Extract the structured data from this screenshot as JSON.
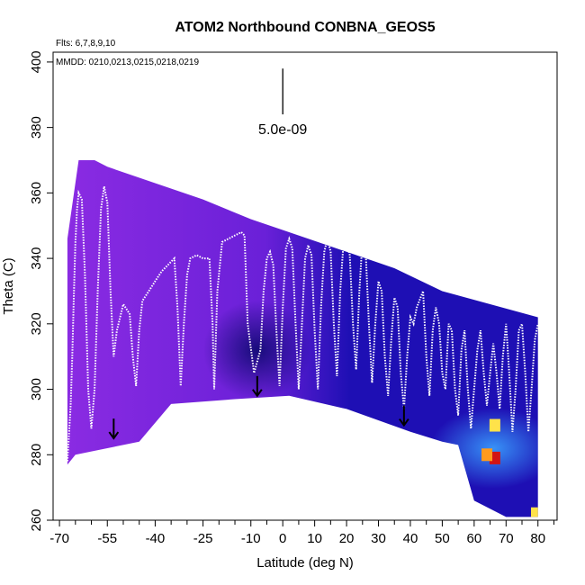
{
  "chart_data": {
    "type": "heatmap",
    "title": "ATOM2 Northbound CONBNA_GEOS5",
    "xlabel": "Latitude (deg N)",
    "ylabel": "Theta (C)",
    "xlim": [
      -72,
      86
    ],
    "ylim": [
      260,
      403
    ],
    "x_ticks": [
      -70,
      -55,
      -40,
      -25,
      -10,
      0,
      10,
      20,
      30,
      40,
      50,
      60,
      70,
      80
    ],
    "x_tick_labels": [
      "-70",
      "-55",
      "-40",
      "-25",
      "-10",
      "0",
      "10",
      "20",
      "30",
      "40",
      "50",
      "60",
      "70",
      "80"
    ],
    "x_minor_ticks": [
      -65,
      -60,
      -50,
      -45,
      -35,
      -30,
      -20,
      -15,
      -5,
      5,
      15,
      25,
      35,
      45,
      55,
      65,
      75,
      85
    ],
    "y_ticks": [
      260,
      280,
      300,
      320,
      340,
      360,
      380,
      400
    ],
    "y_tick_labels": [
      "260",
      "280",
      "300",
      "320",
      "340",
      "360",
      "380",
      "400"
    ],
    "annotations": {
      "flights": "Flts: 6,7,8,9,10",
      "dates": "MMDD: 0210,0213,0215,0218,0219",
      "scale_value": "5.0e-09"
    },
    "scale_bar": {
      "x": 0,
      "y_top": 398,
      "y_bottom": 384
    },
    "colors": {
      "south_purple": "#8a2be2",
      "mid_violet": "#6a20d8",
      "north_blue": "#1e0fb4",
      "dark_core": "#08086a",
      "light_blue": "#3aa0ff",
      "flight_track": "#ffffff",
      "hot_yellow": "#ffe24a",
      "hot_orange": "#ff9a1e",
      "hot_red": "#d21414"
    },
    "domain_top": [
      [
        -67.5,
        346
      ],
      [
        -64,
        370
      ],
      [
        -59,
        370
      ],
      [
        -55,
        368
      ],
      [
        -40,
        363
      ],
      [
        -25,
        358
      ],
      [
        -10,
        352
      ],
      [
        5,
        347
      ],
      [
        20,
        342
      ],
      [
        35,
        337
      ],
      [
        50,
        330
      ],
      [
        65,
        326
      ],
      [
        80,
        322
      ]
    ],
    "domain_bottom": [
      [
        80,
        261
      ],
      [
        70,
        261
      ],
      [
        60,
        266
      ],
      [
        55,
        283
      ],
      [
        50,
        284
      ],
      [
        40,
        287
      ],
      [
        20,
        294
      ],
      [
        2,
        298
      ],
      [
        -15,
        297
      ],
      [
        -35,
        295.5
      ],
      [
        -45,
        284
      ],
      [
        -55,
        282
      ],
      [
        -65,
        280
      ],
      [
        -67.5,
        277
      ]
    ],
    "arrows": [
      [
        -53,
        285
      ],
      [
        -8,
        298
      ],
      [
        38,
        289
      ]
    ],
    "flight_track": [
      [
        -67.5,
        278
      ],
      [
        -66.5,
        295
      ],
      [
        -66,
        310
      ],
      [
        -65.5,
        328
      ],
      [
        -65,
        345
      ],
      [
        -64.5,
        355
      ],
      [
        -64,
        360
      ],
      [
        -63,
        358
      ],
      [
        -62,
        335
      ],
      [
        -61,
        300
      ],
      [
        -60,
        288
      ],
      [
        -59,
        300
      ],
      [
        -58,
        330
      ],
      [
        -57,
        355
      ],
      [
        -56,
        362
      ],
      [
        -55,
        357
      ],
      [
        -54,
        330
      ],
      [
        -53,
        310
      ],
      [
        -52,
        318
      ],
      [
        -50,
        326
      ],
      [
        -48,
        323
      ],
      [
        -47,
        310
      ],
      [
        -46,
        301
      ],
      [
        -45,
        318
      ],
      [
        -44,
        327
      ],
      [
        -42,
        330
      ],
      [
        -40,
        333
      ],
      [
        -38,
        336
      ],
      [
        -36,
        338
      ],
      [
        -34,
        340
      ],
      [
        -33,
        325
      ],
      [
        -32,
        301
      ],
      [
        -31,
        320
      ],
      [
        -30,
        335
      ],
      [
        -29,
        340
      ],
      [
        -27,
        341
      ],
      [
        -25,
        340
      ],
      [
        -23,
        340
      ],
      [
        -22,
        320
      ],
      [
        -21.5,
        300
      ],
      [
        -20.5,
        330
      ],
      [
        -19,
        345
      ],
      [
        -17,
        346
      ],
      [
        -15,
        347
      ],
      [
        -13,
        348
      ],
      [
        -12,
        347
      ],
      [
        -11,
        320
      ],
      [
        -9,
        305
      ],
      [
        -7,
        312
      ],
      [
        -6,
        330
      ],
      [
        -5,
        340
      ],
      [
        -4,
        342
      ],
      [
        -3,
        338
      ],
      [
        -2,
        318
      ],
      [
        -1,
        301
      ],
      [
        0,
        325
      ],
      [
        1,
        343
      ],
      [
        2,
        346
      ],
      [
        3,
        343
      ],
      [
        4,
        320
      ],
      [
        5,
        300
      ],
      [
        6,
        320
      ],
      [
        7,
        340
      ],
      [
        8,
        344
      ],
      [
        9,
        341
      ],
      [
        10,
        318
      ],
      [
        11,
        300
      ],
      [
        12,
        325
      ],
      [
        13,
        342
      ],
      [
        14,
        346
      ],
      [
        15,
        342
      ],
      [
        16,
        320
      ],
      [
        17,
        304
      ],
      [
        18,
        330
      ],
      [
        19,
        344
      ],
      [
        20,
        345
      ],
      [
        21,
        341
      ],
      [
        22,
        320
      ],
      [
        23,
        306
      ],
      [
        24,
        330
      ],
      [
        25,
        346
      ],
      [
        26,
        342
      ],
      [
        27,
        320
      ],
      [
        28,
        302
      ],
      [
        29,
        320
      ],
      [
        30,
        333
      ],
      [
        31,
        330
      ],
      [
        32,
        310
      ],
      [
        33,
        298
      ],
      [
        34,
        315
      ],
      [
        35,
        328
      ],
      [
        36,
        325
      ],
      [
        37,
        305
      ],
      [
        38,
        294
      ],
      [
        39,
        310
      ],
      [
        40,
        322
      ],
      [
        41,
        320
      ],
      [
        42,
        325
      ],
      [
        44,
        330
      ],
      [
        45,
        310
      ],
      [
        46,
        298
      ],
      [
        47,
        318
      ],
      [
        48,
        325
      ],
      [
        49,
        320
      ],
      [
        50,
        305
      ],
      [
        51,
        300
      ],
      [
        52,
        320
      ],
      [
        53,
        318
      ],
      [
        54,
        300
      ],
      [
        55,
        292
      ],
      [
        56,
        312
      ],
      [
        57,
        318
      ],
      [
        58,
        300
      ],
      [
        59,
        288
      ],
      [
        60,
        300
      ],
      [
        61,
        312
      ],
      [
        62,
        318
      ],
      [
        63,
        305
      ],
      [
        64,
        295
      ],
      [
        65,
        305
      ],
      [
        66,
        314
      ],
      [
        67,
        305
      ],
      [
        68,
        294
      ],
      [
        69,
        310
      ],
      [
        70,
        320
      ],
      [
        71,
        305
      ],
      [
        72,
        287
      ],
      [
        73,
        300
      ],
      [
        74,
        318
      ],
      [
        75,
        320
      ],
      [
        76,
        305
      ],
      [
        77,
        287
      ],
      [
        78,
        300
      ],
      [
        79,
        315
      ],
      [
        80,
        320
      ]
    ],
    "hot_spots": [
      [
        66.5,
        289,
        "yellow"
      ],
      [
        66.5,
        279,
        "red"
      ],
      [
        64,
        280,
        "orange"
      ],
      [
        79.5,
        262,
        "yellow"
      ]
    ]
  }
}
